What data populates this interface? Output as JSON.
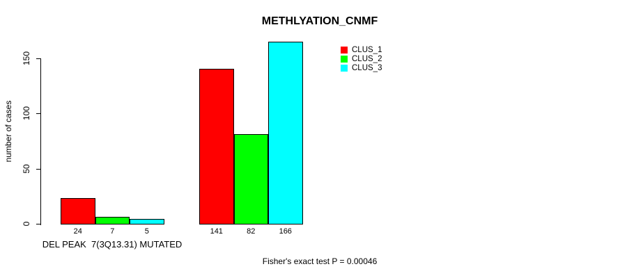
{
  "chart_data": {
    "type": "bar",
    "title": "METHLYATION_CNMF",
    "ylabel": "number of cases",
    "xlabel": "",
    "yticks": [
      0,
      50,
      100,
      150
    ],
    "ylim": [
      0,
      166
    ],
    "grid": false,
    "legend_position": "top-right",
    "series": [
      {
        "name": "CLUS_1",
        "color": "#ff0000"
      },
      {
        "name": "CLUS_2",
        "color": "#00ff00"
      },
      {
        "name": "CLUS_3",
        "color": "#00ffff"
      }
    ],
    "groups": [
      {
        "label": "DEL PEAK  7(3Q13.31) MUTATED",
        "values": [
          24,
          7,
          5
        ]
      },
      {
        "label": "",
        "values": [
          141,
          82,
          166
        ]
      }
    ],
    "annotation": "Fisher's exact test P = 0.00046",
    "axis_color": "#000000",
    "background_color": "#ffffff"
  }
}
